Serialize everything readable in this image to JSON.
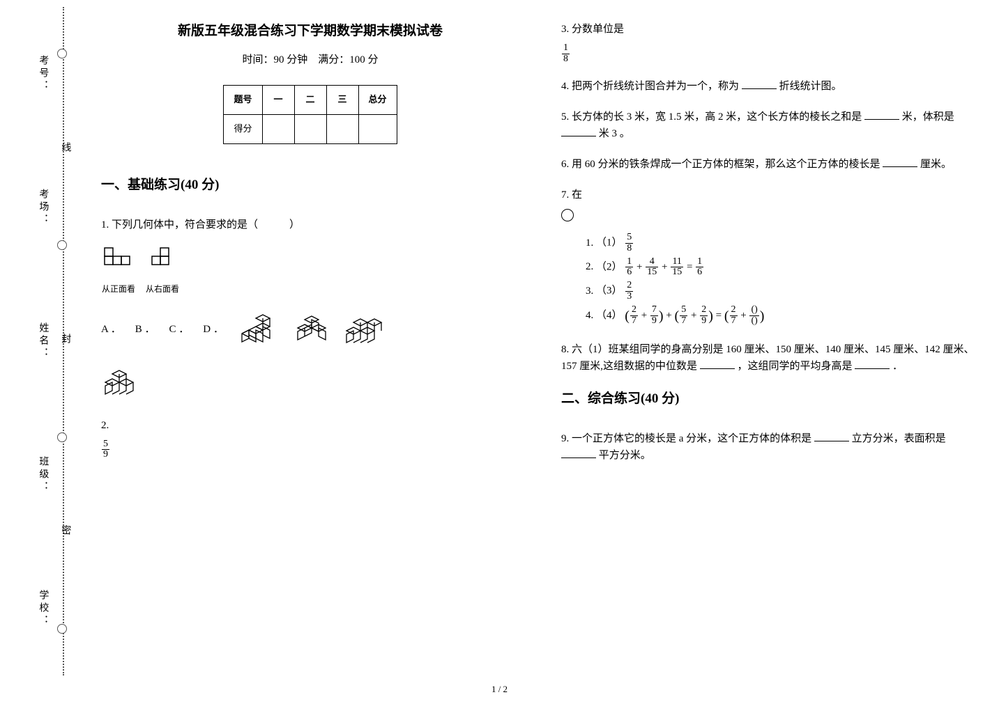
{
  "binding": {
    "v_labels": [
      "学校：",
      "班级：",
      "姓名：",
      "考场：",
      "考号："
    ],
    "markers": [
      "密",
      "封",
      "线"
    ]
  },
  "title": "新版五年级混合练习下学期数学期末模拟试卷",
  "subtitle": "时间：90 分钟　满分：100 分",
  "score_table": {
    "headers": [
      "题号",
      "一",
      "二",
      "三",
      "总分"
    ],
    "row_label": "得分"
  },
  "section1": {
    "title": "一、基础练习(40 分)"
  },
  "q1": {
    "text": "1. 下列几何体中，符合要求的是（　　　）",
    "view_front": "从正面看",
    "view_right": "从右面看",
    "labels": {
      "a": "A ．",
      "b": "B ．",
      "c": "C ．",
      "d": "D ．"
    },
    "svg": {
      "front": "<svg width='50' height='44' viewBox='0 0 50 44'><g fill='none' stroke='#000' stroke-width='1.5'><rect x='5' y='5' width='12' height='12'/><rect x='5' y='17' width='12' height='12'/><rect x='17' y='17' width='12' height='12'/><rect x='29' y='17' width='12' height='12'/></g></svg>",
      "right": "<svg width='40' height='44' viewBox='0 0 40 44'><g fill='none' stroke='#000' stroke-width='1.5'><rect x='17' y='5' width='12' height='12'/><rect x='5' y='17' width='12' height='12'/><rect x='17' y='17' width='12' height='12'/></g></svg>",
      "iso_a": "<svg width='66' height='56' viewBox='0 0 66 56'><g fill='none' stroke='#000' stroke-width='1.3'><path d='M6 38 l10 -5 l0 12 l-10 5 z'/><path d='M16 33 l10 5 l0 12 l-10 -5 z M6 38 l10 5 M16 33 l-10 5'/><path d='M16 33 l10 -5 l10 5 l-10 5 z M26 33 l0 12 l10 5 l0 -12 z M26 45 l-10 -5'/><path d='M26 28 l10 -5 l10 5 l-10 5 z M36 28 l0 12 l10 5 l0 -12 z'/><path d='M26 16 l10 -5 l10 5 l-10 5 z M36 16 l0 12 M46 16 l0 12'/></g></svg>",
      "iso_b": "<svg width='56' height='56' viewBox='0 0 56 56'><g fill='none' stroke='#000' stroke-width='1.3'><path d='M6 30 l10 -5 l10 5 l-10 5 z M16 30 l0 12 l-10 5 l0 -12 z M16 30 l10 -5 l0 12 l-10 5'/><path d='M16 18 l10 -5 l10 5 l-10 5 z M26 18 l0 12 l10 5 l0 -12 z M26 30 l-10 -5'/><path d='M26 30 l10 -5 l10 5 l-10 5 z M36 30 l0 12 l10 5 l0 -12 z'/></g></svg>",
      "iso_c": "<svg width='70' height='56' viewBox='0 0 70 56'><g fill='none' stroke='#000' stroke-width='1.3'><path d='M6 34 l10 -5 l10 5 l-10 5 z M16 34 l0 12 l-10 5 l0 -12 z M26 34 l0 12 l-10 5'/><path d='M26 34 l10 -5 l10 5 l-10 5 z M36 34 l0 12 l-10 5 M46 34 l0 12 l-10 5'/><path d='M16 22 l10 -5 l10 5 l-10 5 z M26 22 l0 12 M36 22 l0 12'/><path d='M36 22 l10 -5 l10 5 l-10 5 z M46 22 l0 12 M56 22 l0 12'/></g></svg>",
      "iso_d": "<svg width='56' height='50' viewBox='0 0 56 50'><g fill='none' stroke='#000' stroke-width='1.3'><path d='M6 28 l10 -5 l10 5 l-10 5 z M16 28 l0 12 l-10 5 l0 -12 z M26 28 l0 12 l-10 5'/><path d='M26 28 l10 -5 l10 5 l-10 5 z M36 28 l0 12 l-10 5 M46 28 l0 12 l-10 5'/><path d='M16 16 l10 -5 l10 5 l-10 5 z M26 16 l0 12 M36 16 l0 12'/></g></svg>"
    }
  },
  "q2": {
    "label": "2.",
    "frac": {
      "n": "5",
      "d": "9"
    }
  },
  "q3": {
    "text": "3. 分数单位是",
    "frac": {
      "n": "1",
      "d": "8"
    }
  },
  "q4": {
    "text_a": "4. 把两个折线统计图合并为一个，称为",
    "text_b": "折线统计图。"
  },
  "q5": {
    "text_a": "5. 长方体的长 3 米，宽 1.5 米，高 2 米，这个长方体的棱长之和是",
    "text_b": "米，体积是",
    "text_c": "米 3 。"
  },
  "q6": {
    "text_a": "6. 用 60 分米的铁条焊成一个正方体的框架，那么这个正方体的棱长是",
    "text_b": "厘米。"
  },
  "q7": {
    "label": "7. 在",
    "item1_prefix": "（1）",
    "item1_frac": {
      "n": "5",
      "d": "8"
    },
    "item2_prefix": "（2）",
    "item2": {
      "f1": {
        "n": "1",
        "d": "6"
      },
      "f2": {
        "n": "4",
        "d": "15"
      },
      "f3": {
        "n": "11",
        "d": "15"
      },
      "f4": {
        "n": "1",
        "d": "6"
      }
    },
    "item3_prefix": "（3）",
    "item3_frac": {
      "n": "2",
      "d": "3"
    },
    "item4_prefix": "（4）",
    "item4": {
      "f1": {
        "n": "2",
        "d": "7"
      },
      "f2": {
        "n": "7",
        "d": "9"
      },
      "f3": {
        "n": "5",
        "d": "7"
      },
      "f4": {
        "n": "2",
        "d": "9"
      },
      "f5": {
        "n": "2",
        "d": "7"
      },
      "f6": {
        "n": "()",
        "d": "()"
      }
    }
  },
  "q8": {
    "text_a": "8. 六（1）班某组同学的身高分别是 160 厘米、150 厘米、140 厘米、145 厘米、142 厘米、157 厘米,这组数据的中位数是",
    "text_b": " ，这组同学的平均身高是",
    "text_c": " ．"
  },
  "section2": {
    "title": "二、综合练习(40 分)"
  },
  "q9": {
    "text_a": "9. 一个正方体它的棱长是 a 分米，这个正方体的体积是",
    "text_b": "立方分米，表面积是",
    "text_c": "平方分米。"
  },
  "page_num": "1 / 2"
}
